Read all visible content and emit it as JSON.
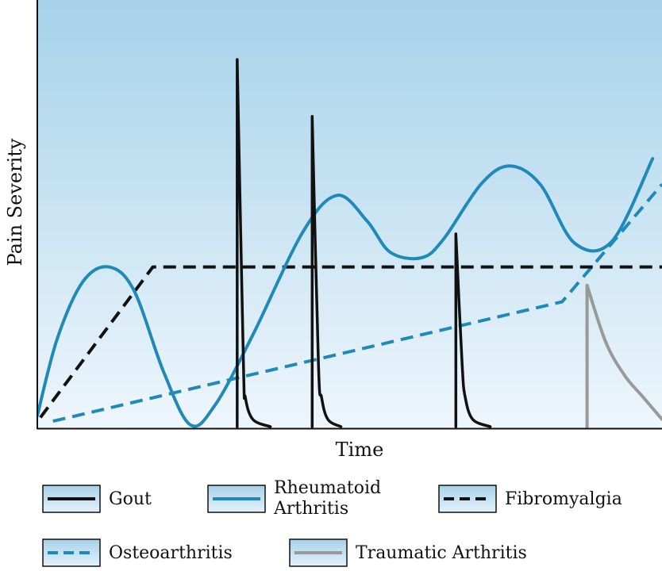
{
  "chart_data": {
    "type": "line",
    "xlabel": "Time",
    "ylabel": "Pain Severity",
    "xlim": [
      0,
      100
    ],
    "ylim": [
      0,
      100
    ],
    "grid": false,
    "legend_position": "bottom",
    "series": [
      {
        "name": "Gout",
        "color": "#111111",
        "style": "solid",
        "points": [
          [
            32.0,
            0
          ],
          [
            32.0,
            100
          ],
          [
            33.0,
            17
          ],
          [
            33.3,
            8
          ],
          [
            34.5,
            2
          ],
          [
            37.3,
            0
          ],
          null,
          [
            44.0,
            0
          ],
          [
            44.0,
            84.5
          ],
          [
            45.0,
            17
          ],
          [
            45.5,
            8
          ],
          [
            46.5,
            2
          ],
          [
            48.6,
            0
          ],
          null,
          [
            67.0,
            0
          ],
          [
            67.0,
            52.5
          ],
          [
            68.0,
            17
          ],
          [
            68.5,
            8
          ],
          [
            69.7,
            2
          ],
          [
            72.5,
            0
          ]
        ]
      },
      {
        "name": "Rheumatoid Arthritis",
        "color": "#1f8ab8",
        "style": "solid",
        "points": [
          [
            0,
            3
          ],
          [
            3.2,
            24
          ],
          [
            7.3,
            39.5
          ],
          [
            11.5,
            43.5
          ],
          [
            15.5,
            37
          ],
          [
            20.2,
            15
          ],
          [
            24.5,
            0.5
          ],
          [
            28.5,
            6
          ],
          [
            34.5,
            25
          ],
          [
            42.5,
            53
          ],
          [
            48.0,
            63
          ],
          [
            52.8,
            56
          ],
          [
            56.5,
            47.5
          ],
          [
            61.5,
            46
          ],
          [
            65.0,
            51
          ],
          [
            71.0,
            66
          ],
          [
            75.6,
            71
          ],
          [
            80.5,
            66
          ],
          [
            86.0,
            50
          ],
          [
            92.0,
            50.5
          ],
          [
            98.5,
            73
          ]
        ]
      },
      {
        "name": "Fibromyalgia",
        "color": "#111111",
        "style": "dashed",
        "points": [
          [
            0.5,
            2.5
          ],
          [
            18.5,
            43.5
          ],
          [
            100,
            43.5
          ]
        ]
      },
      {
        "name": "Osteoarthritis",
        "color": "#1f8ab8",
        "style": "dashed",
        "points": [
          [
            2.5,
            1.5
          ],
          [
            84.0,
            34
          ],
          [
            100,
            66
          ]
        ]
      },
      {
        "name": "Traumatic Arthritis",
        "color": "#999999",
        "style": "solid",
        "points": [
          [
            88.0,
            0
          ],
          [
            88.0,
            38.5
          ],
          [
            91.0,
            23
          ],
          [
            94.0,
            14
          ],
          [
            97.0,
            8
          ],
          [
            100,
            2
          ]
        ]
      }
    ],
    "legend": [
      {
        "label": "Gout",
        "series": 0
      },
      {
        "label": "Rheumatoid\nArthritis",
        "series": 1
      },
      {
        "label": "Fibromyalgia",
        "series": 2
      },
      {
        "label": "Osteoarthritis",
        "series": 3
      },
      {
        "label": "Traumatic Arthritis",
        "series": 4
      }
    ]
  }
}
